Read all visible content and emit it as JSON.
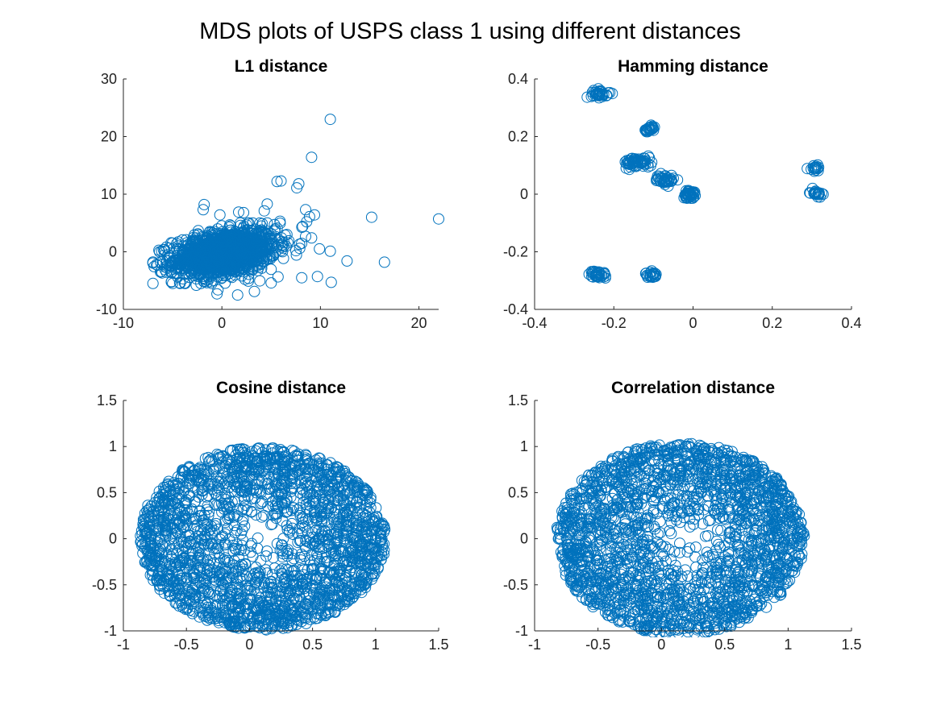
{
  "figure": {
    "title": "MDS plots of USPS class 1 using different distances",
    "marker_color": "#0072BD",
    "marker": "open-circle"
  },
  "chart_data": [
    {
      "type": "scatter",
      "title": "L1 distance",
      "xlabel": "",
      "ylabel": "",
      "xlim": [
        -10,
        22
      ],
      "ylim": [
        -10,
        30
      ],
      "xticks": [
        -10,
        0,
        10,
        20
      ],
      "xtick_labels": [
        "-10",
        "0",
        "10",
        "20"
      ],
      "yticks": [
        -10,
        0,
        10,
        20,
        30
      ],
      "ytick_labels": [
        "-10",
        "0",
        "10",
        "20",
        "30"
      ],
      "grid": false,
      "points": [
        [
          11.0,
          23.0
        ],
        [
          9.1,
          16.4
        ],
        [
          5.6,
          12.2
        ],
        [
          6.0,
          12.3
        ],
        [
          7.8,
          11.8
        ],
        [
          7.6,
          11.1
        ],
        [
          -1.8,
          8.2
        ],
        [
          -1.9,
          7.3
        ],
        [
          4.6,
          8.3
        ],
        [
          4.3,
          7.1
        ],
        [
          2.2,
          6.8
        ],
        [
          1.7,
          6.9
        ],
        [
          -0.2,
          6.4
        ],
        [
          8.5,
          7.3
        ],
        [
          8.9,
          6.1
        ],
        [
          9.4,
          6.4
        ],
        [
          8.6,
          5.2
        ],
        [
          8.2,
          4.4
        ],
        [
          9.1,
          2.4
        ],
        [
          15.2,
          6.0
        ],
        [
          22.0,
          5.7
        ],
        [
          7.9,
          0.6
        ],
        [
          9.9,
          0.5
        ],
        [
          11.0,
          0.1
        ],
        [
          12.7,
          -1.6
        ],
        [
          16.5,
          -1.8
        ],
        [
          11.1,
          -5.3
        ],
        [
          9.7,
          -4.3
        ],
        [
          8.1,
          -4.5
        ],
        [
          -0.5,
          -7.3
        ],
        [
          -0.4,
          -6.6
        ],
        [
          1.6,
          -7.5
        ],
        [
          3.3,
          -6.9
        ],
        [
          5.0,
          -5.4
        ],
        [
          -2.6,
          -5.8
        ],
        [
          -1.1,
          -5.2
        ],
        [
          6.6,
          3.0
        ],
        [
          5.9,
          5.3
        ]
      ],
      "dense_cloud": {
        "description_values": "core points, filled by overlapping circles",
        "x_range": [
          -7.0,
          8.5
        ],
        "y_range": [
          -5.5,
          5.0
        ]
      }
    },
    {
      "type": "scatter",
      "title": "Hamming distance",
      "xlabel": "",
      "ylabel": "",
      "xlim": [
        -0.4,
        0.4
      ],
      "ylim": [
        -0.4,
        0.4
      ],
      "xticks": [
        -0.4,
        -0.2,
        0,
        0.2,
        0.4
      ],
      "xtick_labels": [
        "-0.4",
        "-0.2",
        "0",
        "0.2",
        "0.4"
      ],
      "yticks": [
        -0.4,
        -0.2,
        0,
        0.2,
        0.4
      ],
      "ytick_labels": [
        "-0.4",
        "-0.2",
        "0",
        "0.2",
        "0.4"
      ],
      "grid": false,
      "clusters": [
        {
          "cx": -0.235,
          "cy": 0.35,
          "sx": 0.018,
          "sy": 0.012,
          "n": 35
        },
        {
          "cx": -0.11,
          "cy": 0.225,
          "sx": 0.012,
          "sy": 0.01,
          "n": 25
        },
        {
          "cx": -0.14,
          "cy": 0.11,
          "sx": 0.03,
          "sy": 0.015,
          "n": 60
        },
        {
          "cx": -0.07,
          "cy": 0.05,
          "sx": 0.02,
          "sy": 0.015,
          "n": 40
        },
        {
          "cx": -0.01,
          "cy": 0.0,
          "sx": 0.012,
          "sy": 0.012,
          "n": 40
        },
        {
          "cx": 0.31,
          "cy": 0.09,
          "sx": 0.012,
          "sy": 0.008,
          "n": 18
        },
        {
          "cx": 0.31,
          "cy": 0.005,
          "sx": 0.012,
          "sy": 0.01,
          "n": 20
        },
        {
          "cx": -0.24,
          "cy": -0.28,
          "sx": 0.018,
          "sy": 0.012,
          "n": 35
        },
        {
          "cx": -0.105,
          "cy": -0.28,
          "sx": 0.012,
          "sy": 0.008,
          "n": 25
        }
      ]
    },
    {
      "type": "scatter",
      "title": "Cosine distance",
      "xlabel": "",
      "ylabel": "",
      "xlim": [
        -1,
        1.5
      ],
      "ylim": [
        -1,
        1.5
      ],
      "xticks": [
        -1,
        -0.5,
        0,
        0.5,
        1,
        1.5
      ],
      "xtick_labels": [
        "-1",
        "-0.5",
        "0",
        "0.5",
        "1",
        "1.5"
      ],
      "yticks": [
        -1,
        -0.5,
        0,
        0.5,
        1,
        1.5
      ],
      "ytick_labels": [
        "-1",
        "-0.5",
        "0",
        "0.5",
        "1",
        "1.5"
      ],
      "grid": false,
      "ellipse": {
        "cx": 0.1,
        "cy": 0.0,
        "rx": 0.98,
        "ry": 0.99
      },
      "n_points": 2200
    },
    {
      "type": "scatter",
      "title": "Correlation distance",
      "xlabel": "",
      "ylabel": "",
      "xlim": [
        -1,
        1.5
      ],
      "ylim": [
        -1,
        1.5
      ],
      "xticks": [
        -1,
        -0.5,
        0,
        0.5,
        1,
        1.5
      ],
      "xtick_labels": [
        "-1",
        "-0.5",
        "0",
        "0.5",
        "1",
        "1.5"
      ],
      "yticks": [
        -1,
        -0.5,
        0,
        0.5,
        1,
        1.5
      ],
      "ytick_labels": [
        "-1",
        "-0.5",
        "0",
        "0.5",
        "1",
        "1.5"
      ],
      "grid": false,
      "ellipse": {
        "cx": 0.15,
        "cy": 0.0,
        "rx": 0.98,
        "ry": 1.04
      },
      "n_points": 2200
    }
  ]
}
